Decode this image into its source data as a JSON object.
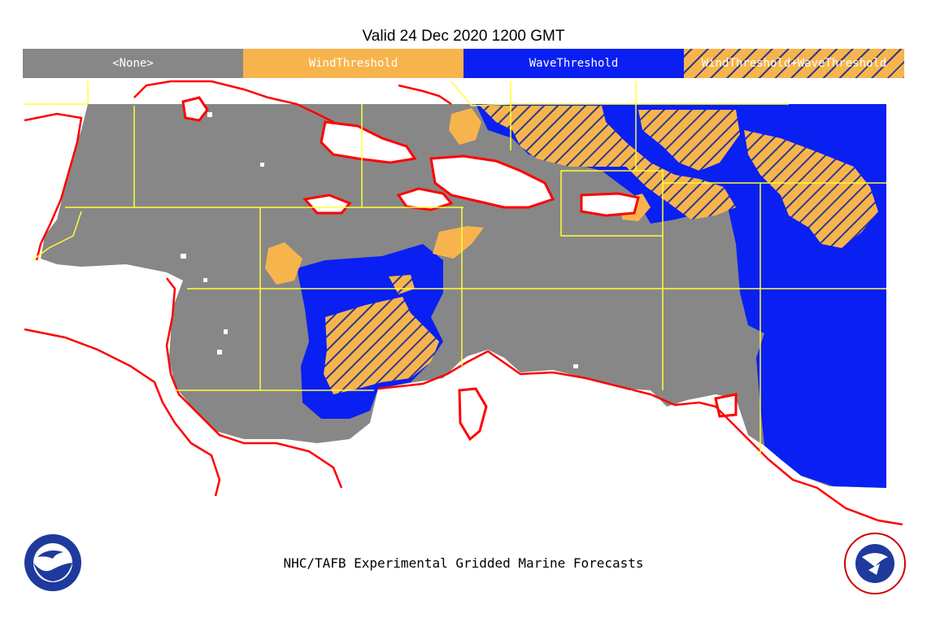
{
  "title": "Valid 24 Dec 2020 1200 GMT",
  "legend": [
    {
      "label": "<None>",
      "color": "#878787"
    },
    {
      "label": "WindThreshold",
      "color": "#f8b44c"
    },
    {
      "label": "WaveThreshold",
      "color": "#0a1ff2"
    },
    {
      "label": "WindThreshold+WaveThreshold",
      "color": "#f8b44c"
    }
  ],
  "footer": "NHC/TAFB Experimental Gridded Marine Forecasts",
  "logos": {
    "left": "NOAA",
    "right": "NATIONAL WEATHER SERVICE"
  },
  "colors": {
    "land": "#ffffff",
    "coast": "#ff0000",
    "zones": "#ffff33",
    "none": "#878787",
    "wind": "#f8b44c",
    "wave": "#0a1ff2"
  }
}
